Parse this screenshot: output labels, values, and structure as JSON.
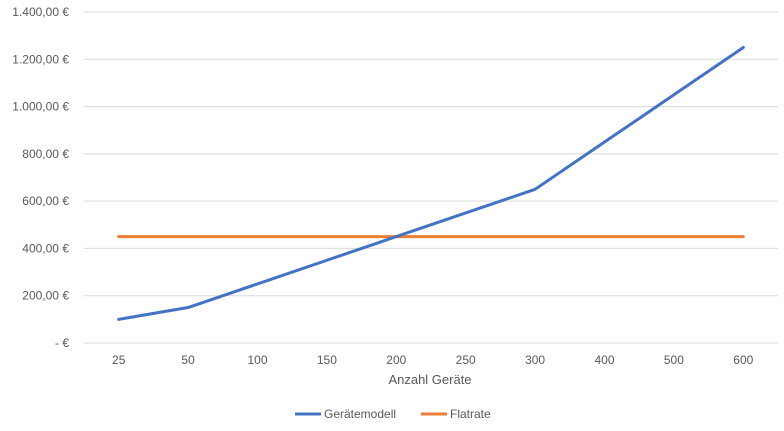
{
  "chart_data": {
    "type": "line",
    "title": "",
    "xlabel": "Anzahl Geräte",
    "ylabel": "",
    "categories": [
      "25",
      "50",
      "100",
      "150",
      "200",
      "250",
      "300",
      "400",
      "500",
      "600"
    ],
    "y_tick_labels": [
      "-  €",
      "200,00 €",
      "400,00 €",
      "600,00 €",
      "800,00 €",
      "1.000,00 €",
      "1.200,00 €",
      "1.400,00 €"
    ],
    "ylim": [
      0,
      1400
    ],
    "y_ticks": [
      0,
      200,
      400,
      600,
      800,
      1000,
      1200,
      1400
    ],
    "grid": true,
    "legend_position": "bottom",
    "series": [
      {
        "name": "Gerätemodell",
        "color": "#4472C4",
        "values": [
          100,
          150,
          250,
          350,
          450,
          550,
          650,
          850,
          1050,
          1250
        ]
      },
      {
        "name": "Flatrate",
        "color": "#ED7D31",
        "values": [
          450,
          450,
          450,
          450,
          450,
          450,
          450,
          450,
          450,
          450
        ]
      }
    ]
  }
}
